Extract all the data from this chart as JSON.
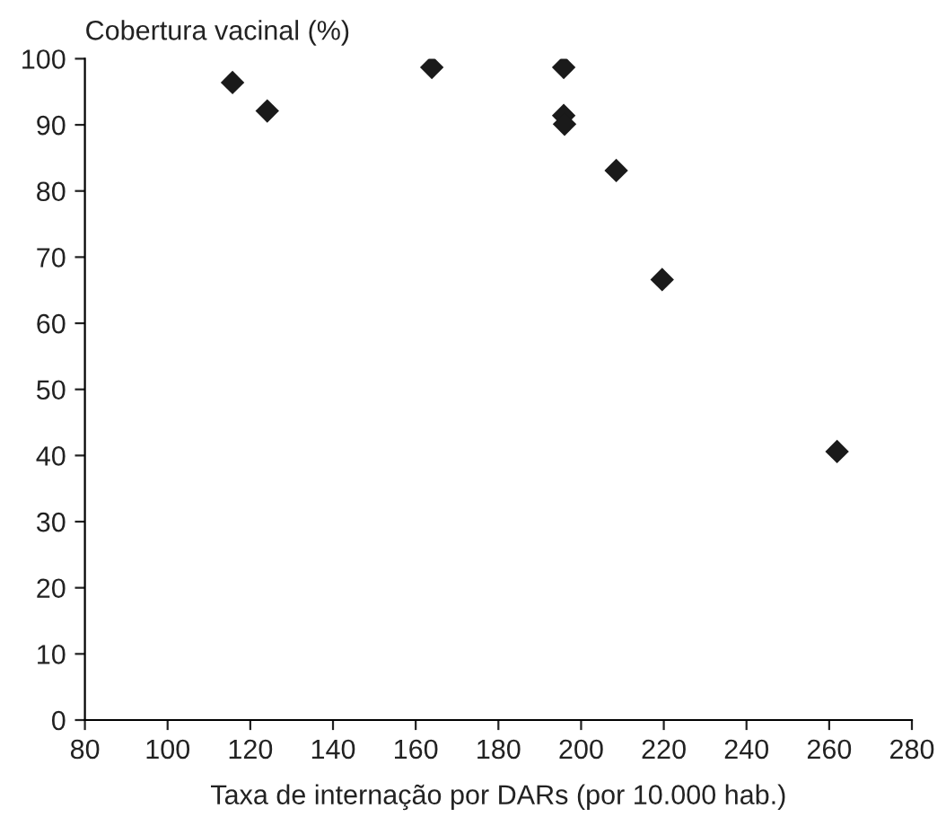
{
  "chart_data": {
    "type": "scatter",
    "xlabel": "Taxa de internação por DARs (por 10.000 hab.)",
    "ylabel": "Cobertura vacinal (%)",
    "series": [
      {
        "color": "#1a1a1a",
        "x": [
          115.7,
          124.1,
          163.9,
          195.8,
          195.8,
          196.0,
          208.5,
          219.6,
          261.9
        ],
        "values": [
          96.4,
          92.1,
          98.7,
          98.7,
          91.4,
          90.1,
          83.1,
          66.6,
          40.6
        ]
      }
    ],
    "xlim": [
      80,
      280
    ],
    "xticks": [
      80,
      100,
      120,
      140,
      160,
      180,
      200,
      220,
      240,
      260,
      280
    ],
    "ylim": [
      0,
      100
    ],
    "yticks": [
      0,
      10,
      20,
      30,
      40,
      50,
      60,
      70,
      80,
      90,
      100
    ],
    "marker": "diamond",
    "grid": false,
    "legend": false
  }
}
